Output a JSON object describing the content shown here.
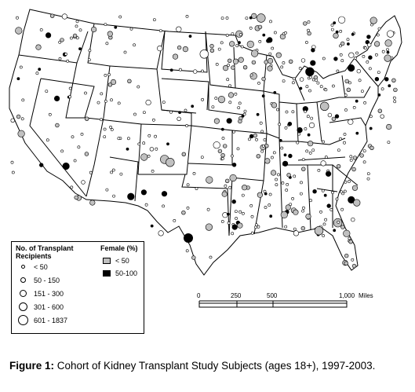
{
  "legend": {
    "size_title": "No. of Transplant Recipients",
    "size_title_line1": "No. of Transplant",
    "size_title_line2": "Recipients",
    "size_classes": [
      "< 50",
      "50 - 150",
      "151 - 300",
      "301 - 600",
      "601 - 1837"
    ],
    "female_title": "Female (%)",
    "female_classes": [
      {
        "label": "< 50",
        "color": "#c0c0c0"
      },
      {
        "label": "50-100",
        "color": "#000000"
      }
    ]
  },
  "scale_bar": {
    "ticks": [
      "0",
      "250",
      "500",
      "1,000"
    ],
    "unit": "Miles"
  },
  "caption": {
    "label": "Figure 1:",
    "text": "Cohort of Kidney Transplant Study Subjects (ages 18+), 1997-2003."
  },
  "colors": {
    "state_outline": "#000000",
    "land": "#ffffff",
    "female_lt_50": "#c0c0c0",
    "female_50_100": "#000000"
  }
}
